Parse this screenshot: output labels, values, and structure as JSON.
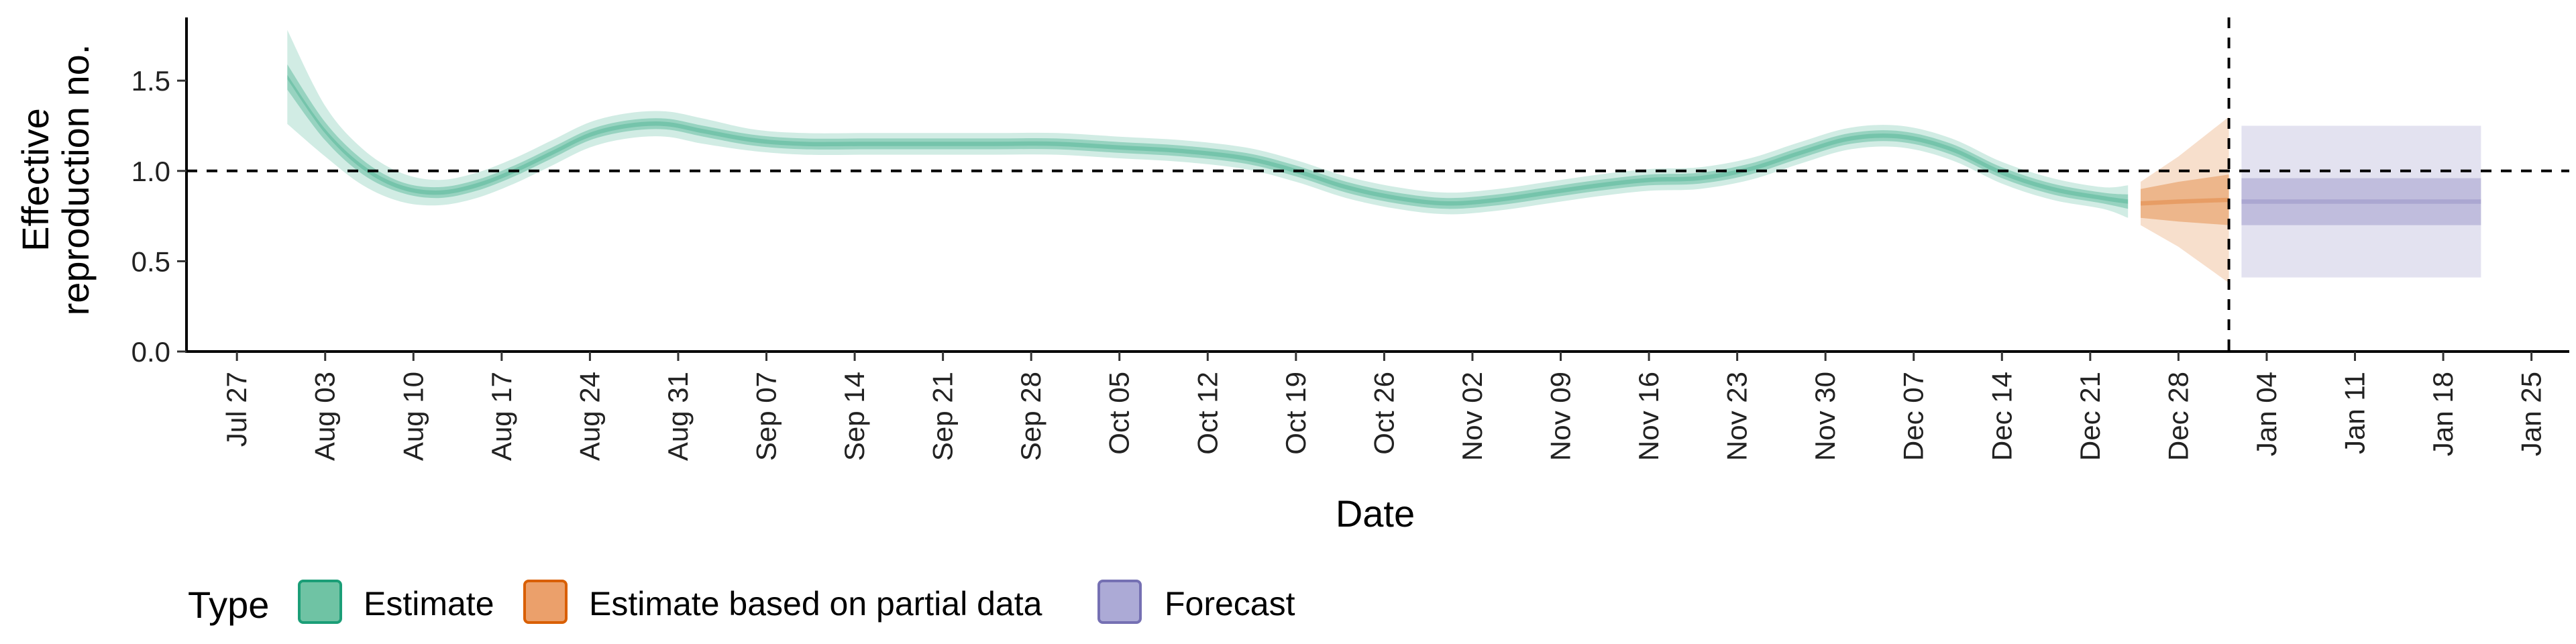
{
  "chart_data": {
    "type": "area",
    "title": "",
    "xlabel": "Date",
    "ylabel": [
      "Effective",
      "reproduction no."
    ],
    "ylim": [
      0,
      1.85
    ],
    "xlim": [
      "2020-07-23",
      "2021-01-28"
    ],
    "y_ticks": [
      "0.0",
      "0.5",
      "1.0",
      "1.5"
    ],
    "x_ticks": [
      "2020-07-27",
      "2020-08-03",
      "2020-08-10",
      "2020-08-17",
      "2020-08-24",
      "2020-08-31",
      "2020-09-07",
      "2020-09-14",
      "2020-09-21",
      "2020-09-28",
      "2020-10-05",
      "2020-10-12",
      "2020-10-19",
      "2020-10-26",
      "2020-11-02",
      "2020-11-09",
      "2020-11-16",
      "2020-11-23",
      "2020-11-30",
      "2020-12-07",
      "2020-12-14",
      "2020-12-21",
      "2020-12-28",
      "2021-01-04",
      "2021-01-11",
      "2021-01-18",
      "2021-01-25"
    ],
    "x_tick_labels": [
      "Jul 27",
      "Aug 03",
      "Aug 10",
      "Aug 17",
      "Aug 24",
      "Aug 31",
      "Sep 07",
      "Sep 14",
      "Sep 21",
      "Sep 28",
      "Oct 05",
      "Oct 12",
      "Oct 19",
      "Oct 26",
      "Nov 02",
      "Nov 09",
      "Nov 16",
      "Nov 23",
      "Nov 30",
      "Dec 07",
      "Dec 14",
      "Dec 21",
      "Dec 28",
      "Jan 04",
      "Jan 11",
      "Jan 18",
      "Jan 25"
    ],
    "reference_lines": {
      "horizontal_y": 1.0,
      "vertical_date": "2021-01-01"
    },
    "grid": false,
    "legend_position": "bottom-left",
    "series": [
      {
        "name": "Estimate",
        "color": "#1b9e77",
        "x": [
          "2020-07-31",
          "2020-08-03",
          "2020-08-06",
          "2020-08-09",
          "2020-08-12",
          "2020-08-15",
          "2020-08-18",
          "2020-08-21",
          "2020-08-24",
          "2020-08-27",
          "2020-08-30",
          "2020-09-02",
          "2020-09-06",
          "2020-09-10",
          "2020-09-15",
          "2020-09-20",
          "2020-09-25",
          "2020-09-30",
          "2020-10-05",
          "2020-10-10",
          "2020-10-15",
          "2020-10-19",
          "2020-10-23",
          "2020-10-27",
          "2020-10-31",
          "2020-11-04",
          "2020-11-08",
          "2020-11-12",
          "2020-11-16",
          "2020-11-20",
          "2020-11-24",
          "2020-11-28",
          "2020-12-02",
          "2020-12-06",
          "2020-12-10",
          "2020-12-14",
          "2020-12-18",
          "2020-12-22",
          "2020-12-24"
        ],
        "median": [
          1.52,
          1.22,
          1.02,
          0.91,
          0.88,
          0.92,
          1.0,
          1.1,
          1.2,
          1.25,
          1.26,
          1.22,
          1.17,
          1.15,
          1.15,
          1.15,
          1.15,
          1.15,
          1.13,
          1.11,
          1.07,
          1.0,
          0.91,
          0.85,
          0.82,
          0.84,
          0.88,
          0.92,
          0.95,
          0.96,
          1.01,
          1.1,
          1.18,
          1.19,
          1.12,
          0.99,
          0.9,
          0.85,
          0.83
        ],
        "ci50_halfwidth": [
          0.07,
          0.05,
          0.04,
          0.03,
          0.03,
          0.03,
          0.03,
          0.03,
          0.03,
          0.03,
          0.03,
          0.03,
          0.03,
          0.03,
          0.03,
          0.03,
          0.03,
          0.03,
          0.03,
          0.03,
          0.03,
          0.03,
          0.03,
          0.03,
          0.03,
          0.03,
          0.03,
          0.03,
          0.03,
          0.03,
          0.03,
          0.03,
          0.03,
          0.03,
          0.03,
          0.03,
          0.03,
          0.03,
          0.04
        ],
        "ci90_halfwidth": [
          0.26,
          0.14,
          0.1,
          0.08,
          0.07,
          0.07,
          0.07,
          0.07,
          0.07,
          0.07,
          0.07,
          0.07,
          0.06,
          0.06,
          0.06,
          0.06,
          0.06,
          0.06,
          0.06,
          0.06,
          0.06,
          0.06,
          0.06,
          0.06,
          0.06,
          0.06,
          0.06,
          0.06,
          0.06,
          0.06,
          0.06,
          0.06,
          0.06,
          0.06,
          0.06,
          0.06,
          0.06,
          0.06,
          0.09
        ]
      },
      {
        "name": "Estimate based on partial data",
        "color": "#d95f02",
        "x": [
          "2020-12-25",
          "2020-12-28",
          "2021-01-01"
        ],
        "median": [
          0.82,
          0.83,
          0.84
        ],
        "ci50_halfwidth": [
          0.08,
          0.11,
          0.14
        ],
        "ci90_halfwidth": [
          0.12,
          0.25,
          0.46
        ]
      },
      {
        "name": "Forecast",
        "color": "#7570b3",
        "x": [
          "2021-01-02",
          "2021-01-21"
        ],
        "median": [
          0.83,
          0.83
        ],
        "ci50_halfwidth": [
          0.13,
          0.13
        ],
        "ci90_halfwidth": [
          0.42,
          0.42
        ]
      }
    ]
  },
  "legend": {
    "title": "Type",
    "items": [
      {
        "label": "Estimate",
        "fill": "#6fc3a4",
        "border": "#1b9e77"
      },
      {
        "label": "Estimate based on partial data",
        "fill": "#eba06b",
        "border": "#d95f02"
      },
      {
        "label": "Forecast",
        "fill": "#acaad6",
        "border": "#7570b3"
      }
    ]
  }
}
